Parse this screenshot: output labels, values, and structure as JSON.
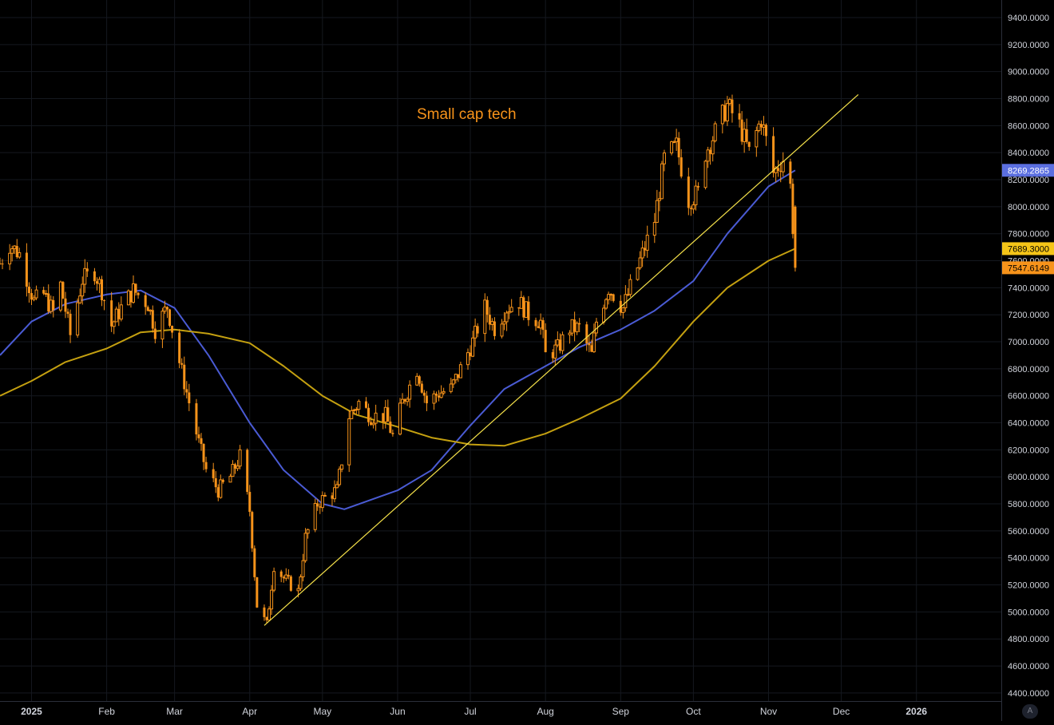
{
  "chart_data": {
    "type": "candlestick",
    "title": "Small cap tech",
    "ylim": [
      4300,
      9500
    ],
    "y_ticks": [
      4400,
      4600,
      4800,
      5000,
      5200,
      5400,
      5600,
      5800,
      6000,
      6200,
      6400,
      6600,
      6800,
      7000,
      7200,
      7400,
      7600,
      7800,
      8000,
      8200,
      8400,
      8600,
      8800,
      9000,
      9200,
      9400
    ],
    "y_tick_labels": [
      "4400.0000",
      "4600.0000",
      "4800.0000",
      "5000.0000",
      "5200.0000",
      "5400.0000",
      "5600.0000",
      "5800.0000",
      "6000.0000",
      "6200.0000",
      "6400.0000",
      "6600.0000",
      "6800.0000",
      "7000.0000",
      "7200.0000",
      "7400.0000",
      "7600.0000",
      "7800.0000",
      "8000.0000",
      "8200.0000",
      "8400.0000",
      "8600.0000",
      "8800.0000",
      "9000.0000",
      "9200.0000",
      "9400.0000"
    ],
    "x_range": [
      "2024-12-19",
      "2026-02-05"
    ],
    "x_ticks": [
      {
        "date": "2025-01-01",
        "label": "2025",
        "bold": true
      },
      {
        "date": "2025-02-01",
        "label": "Feb",
        "bold": false
      },
      {
        "date": "2025-03-01",
        "label": "Mar",
        "bold": false
      },
      {
        "date": "2025-04-01",
        "label": "Apr",
        "bold": false
      },
      {
        "date": "2025-05-01",
        "label": "May",
        "bold": false
      },
      {
        "date": "2025-06-01",
        "label": "Jun",
        "bold": false
      },
      {
        "date": "2025-07-01",
        "label": "Jul",
        "bold": false
      },
      {
        "date": "2025-08-01",
        "label": "Aug",
        "bold": false
      },
      {
        "date": "2025-09-01",
        "label": "Sep",
        "bold": false
      },
      {
        "date": "2025-10-01",
        "label": "Oct",
        "bold": false
      },
      {
        "date": "2025-11-01",
        "label": "Nov",
        "bold": false
      },
      {
        "date": "2025-12-01",
        "label": "Dec",
        "bold": false
      },
      {
        "date": "2026-01-01",
        "label": "2026",
        "bold": true
      }
    ],
    "grid": true,
    "price_anchors": [
      [
        "2024-12-19",
        7580
      ],
      [
        "2024-12-23",
        7720
      ],
      [
        "2024-12-27",
        7650
      ],
      [
        "2025-01-02",
        7300
      ],
      [
        "2025-01-06",
        7350
      ],
      [
        "2025-01-10",
        7220
      ],
      [
        "2025-01-13",
        7420
      ],
      [
        "2025-01-17",
        7050
      ],
      [
        "2025-01-22",
        7460
      ],
      [
        "2025-01-27",
        7520
      ],
      [
        "2025-01-30",
        7380
      ],
      [
        "2025-02-03",
        7120
      ],
      [
        "2025-02-07",
        7250
      ],
      [
        "2025-02-12",
        7380
      ],
      [
        "2025-02-18",
        7280
      ],
      [
        "2025-02-21",
        7090
      ],
      [
        "2025-02-26",
        7260
      ],
      [
        "2025-03-03",
        6850
      ],
      [
        "2025-03-07",
        6550
      ],
      [
        "2025-03-11",
        6250
      ],
      [
        "2025-03-14",
        6050
      ],
      [
        "2025-03-19",
        5900
      ],
      [
        "2025-03-24",
        6000
      ],
      [
        "2025-03-28",
        6150
      ],
      [
        "2025-04-01",
        5750
      ],
      [
        "2025-04-04",
        5050
      ],
      [
        "2025-04-08",
        4900
      ],
      [
        "2025-04-11",
        5350
      ],
      [
        "2025-04-15",
        5250
      ],
      [
        "2025-04-21",
        5150
      ],
      [
        "2025-04-24",
        5550
      ],
      [
        "2025-04-29",
        5800
      ],
      [
        "2025-05-02",
        5850
      ],
      [
        "2025-05-07",
        5900
      ],
      [
        "2025-05-12",
        6450
      ],
      [
        "2025-05-16",
        6550
      ],
      [
        "2025-05-21",
        6450
      ],
      [
        "2025-05-27",
        6450
      ],
      [
        "2025-05-30",
        6300
      ],
      [
        "2025-06-03",
        6550
      ],
      [
        "2025-06-09",
        6800
      ],
      [
        "2025-06-13",
        6550
      ],
      [
        "2025-06-18",
        6620
      ],
      [
        "2025-06-23",
        6650
      ],
      [
        "2025-06-27",
        6800
      ],
      [
        "2025-07-02",
        7000
      ],
      [
        "2025-07-07",
        7250
      ],
      [
        "2025-07-11",
        7100
      ],
      [
        "2025-07-16",
        7250
      ],
      [
        "2025-07-21",
        7300
      ],
      [
        "2025-07-25",
        7200
      ],
      [
        "2025-07-30",
        7150
      ],
      [
        "2025-08-01",
        6900
      ],
      [
        "2025-08-06",
        6950
      ],
      [
        "2025-08-11",
        7100
      ],
      [
        "2025-08-15",
        7100
      ],
      [
        "2025-08-20",
        6900
      ],
      [
        "2025-08-22",
        7150
      ],
      [
        "2025-08-27",
        7400
      ],
      [
        "2025-09-02",
        7250
      ],
      [
        "2025-09-05",
        7400
      ],
      [
        "2025-09-10",
        7650
      ],
      [
        "2025-09-15",
        7900
      ],
      [
        "2025-09-19",
        8350
      ],
      [
        "2025-09-24",
        8450
      ],
      [
        "2025-09-29",
        8050
      ],
      [
        "2025-10-03",
        8100
      ],
      [
        "2025-10-06",
        8400
      ],
      [
        "2025-10-10",
        8550
      ],
      [
        "2025-10-15",
        8750
      ],
      [
        "2025-10-20",
        8600
      ],
      [
        "2025-10-24",
        8400
      ],
      [
        "2025-10-29",
        8650
      ],
      [
        "2025-11-03",
        8250
      ],
      [
        "2025-11-07",
        8350
      ],
      [
        "2025-11-10",
        8150
      ],
      [
        "2025-11-12",
        7547.6149
      ]
    ],
    "series": [
      {
        "type": "line",
        "color": "#4a5bd4",
        "points": [
          [
            "2024-12-19",
            6900
          ],
          [
            "2025-01-01",
            7150
          ],
          [
            "2025-01-15",
            7280
          ],
          [
            "2025-02-01",
            7350
          ],
          [
            "2025-02-15",
            7380
          ],
          [
            "2025-03-01",
            7250
          ],
          [
            "2025-03-15",
            6900
          ],
          [
            "2025-04-01",
            6400
          ],
          [
            "2025-04-15",
            6050
          ],
          [
            "2025-05-01",
            5800
          ],
          [
            "2025-05-10",
            5760
          ],
          [
            "2025-06-01",
            5900
          ],
          [
            "2025-06-15",
            6050
          ],
          [
            "2025-07-01",
            6380
          ],
          [
            "2025-07-15",
            6650
          ],
          [
            "2025-08-01",
            6820
          ],
          [
            "2025-08-15",
            6960
          ],
          [
            "2025-09-01",
            7090
          ],
          [
            "2025-09-15",
            7230
          ],
          [
            "2025-10-01",
            7450
          ],
          [
            "2025-10-15",
            7800
          ],
          [
            "2025-11-01",
            8150
          ],
          [
            "2025-11-12",
            8269.2865
          ]
        ],
        "last_value_label": "8269.2865"
      },
      {
        "type": "line",
        "color": "#c4a010",
        "points": [
          [
            "2024-12-19",
            6600
          ],
          [
            "2025-01-01",
            6710
          ],
          [
            "2025-01-15",
            6850
          ],
          [
            "2025-02-01",
            6950
          ],
          [
            "2025-02-15",
            7070
          ],
          [
            "2025-03-01",
            7090
          ],
          [
            "2025-03-15",
            7060
          ],
          [
            "2025-04-01",
            6990
          ],
          [
            "2025-04-15",
            6820
          ],
          [
            "2025-05-01",
            6600
          ],
          [
            "2025-05-15",
            6460
          ],
          [
            "2025-06-01",
            6370
          ],
          [
            "2025-06-15",
            6290
          ],
          [
            "2025-07-01",
            6240
          ],
          [
            "2025-07-15",
            6230
          ],
          [
            "2025-08-01",
            6320
          ],
          [
            "2025-08-15",
            6430
          ],
          [
            "2025-09-01",
            6580
          ],
          [
            "2025-09-15",
            6820
          ],
          [
            "2025-10-01",
            7150
          ],
          [
            "2025-10-15",
            7400
          ],
          [
            "2025-11-01",
            7600
          ],
          [
            "2025-11-12",
            7689.3
          ]
        ],
        "last_value_label": "7689.3000"
      },
      {
        "type": "trendline",
        "color": "#f5e14a",
        "points": [
          [
            "2025-04-07",
            4900
          ],
          [
            "2025-12-08",
            8830
          ]
        ]
      }
    ],
    "price_labels": [
      {
        "value": 8269.2865,
        "text": "8269.2865",
        "bg": "#5b6fe0",
        "fg": "#ffffff"
      },
      {
        "value": 7689.3,
        "text": "7689.3000",
        "bg": "#f5c518",
        "fg": "#000000"
      },
      {
        "value": 7547.6149,
        "text": "7547.6149",
        "bg": "#f7931a",
        "fg": "#000000"
      }
    ],
    "candle_color": "#f7931a",
    "last_candle": {
      "date": "2025-11-12",
      "open": 8000,
      "high": 8010,
      "low": 7520,
      "close": 7547.6149
    }
  },
  "colors": {
    "background": "#000000",
    "grid": "#15181f",
    "axis_text": "#d1d4dc",
    "title": "#f7931a"
  },
  "ui": {
    "auto_scale_button": "A"
  }
}
